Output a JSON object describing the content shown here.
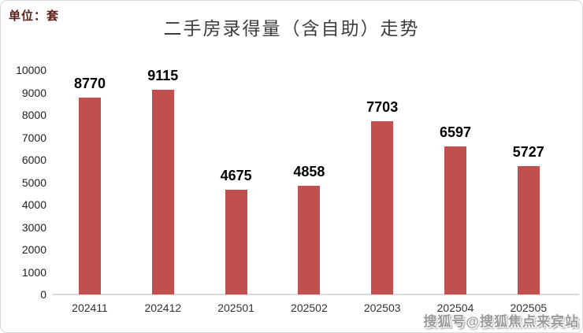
{
  "header": {
    "unit_label": "单位：套",
    "title": "二手房录得量（含自助）走势"
  },
  "watermark": {
    "text": "搜狐号@搜狐焦点来宾站"
  },
  "colors": {
    "bar": "#c0504d",
    "axis_line": "#d9d9d9",
    "title_text": "#3d3d3d",
    "unit_text": "#5c2018",
    "value_label": "#000000",
    "tick_label": "#1f1f1f",
    "watermark": "#9a9a9a",
    "background": "#ffffff",
    "card_border": "#d8d8d8"
  },
  "chart_data": {
    "type": "bar",
    "title": "二手房录得量（含自助）走势",
    "xlabel": "",
    "ylabel": "单位：套",
    "categories": [
      "202411",
      "202412",
      "202501",
      "202502",
      "202503",
      "202504",
      "202505"
    ],
    "values": [
      8770,
      9115,
      4675,
      4858,
      7703,
      6597,
      5727
    ],
    "ylim": [
      0,
      10000
    ],
    "yticks": [
      0,
      1000,
      2000,
      3000,
      4000,
      5000,
      6000,
      7000,
      8000,
      9000,
      10000
    ],
    "grid": false,
    "legend_position": "none",
    "bar_color": "#c0504d",
    "data_labels_shown": true
  }
}
